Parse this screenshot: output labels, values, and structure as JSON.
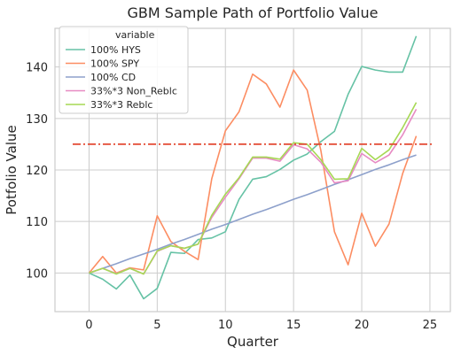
{
  "chart_data": {
    "type": "line",
    "title": "GBM Sample Path of Portfolio Value",
    "xlabel": "Quarter",
    "ylabel": "Potfolio Value",
    "xlim": [
      -2.5,
      26.5
    ],
    "ylim": [
      92.5,
      147.5
    ],
    "xticks": [
      0,
      5,
      10,
      15,
      20,
      25
    ],
    "yticks": [
      100,
      110,
      120,
      130,
      140
    ],
    "grid": true,
    "legend": {
      "title": "variable",
      "position": "top-left"
    },
    "x": [
      0,
      1,
      2,
      3,
      4,
      5,
      6,
      7,
      8,
      9,
      10,
      11,
      12,
      13,
      14,
      15,
      16,
      17,
      18,
      19,
      20,
      21,
      22,
      23,
      24
    ],
    "series": [
      {
        "name": "100% HYS",
        "color": "#66c2a5",
        "values": [
          100,
          98.8,
          96.9,
          99.6,
          95,
          97,
          104,
          103.8,
          106.5,
          106.8,
          108,
          114.3,
          118.2,
          118.7,
          120.1,
          121.9,
          123.1,
          125.5,
          127.5,
          134.7,
          140.1,
          139.4,
          139,
          139,
          146
        ]
      },
      {
        "name": "100% SPY",
        "color": "#fc8d62",
        "values": [
          100,
          103.2,
          100,
          101,
          100.6,
          111.1,
          106.1,
          104.2,
          102.6,
          118.3,
          127.6,
          131.3,
          138.6,
          136.7,
          132.2,
          139.4,
          135.5,
          123.8,
          108,
          101.6,
          111.6,
          105.2,
          109.5,
          119.3,
          126.6
        ]
      },
      {
        "name": "100% CD",
        "color": "#8da0cb",
        "values": [
          100,
          100.9,
          101.8,
          102.8,
          103.7,
          104.6,
          105.6,
          106.5,
          107.5,
          108.5,
          109.4,
          110.4,
          111.4,
          112.3,
          113.3,
          114.3,
          115.2,
          116.2,
          117.2,
          118.1,
          119.1,
          120.1,
          121,
          122,
          122.9
        ]
      },
      {
        "name": "33%*3 Non_Reblc",
        "color": "#e78ac3",
        "values": [
          100,
          100.9,
          99.9,
          100.9,
          99.8,
          104.2,
          105.3,
          104.8,
          105.6,
          110.8,
          114.7,
          118.3,
          122.3,
          122.3,
          121.7,
          124.9,
          124.1,
          121.5,
          117.5,
          117.9,
          123.2,
          121.4,
          122.9,
          126.8,
          131.8
        ]
      },
      {
        "name": "33%*3 Reblc",
        "color": "#a6d854",
        "values": [
          100,
          100.9,
          99.8,
          100.9,
          99.8,
          104.3,
          105.3,
          104.8,
          105.6,
          111.2,
          115.3,
          118.5,
          122.5,
          122.5,
          122.1,
          125.3,
          125,
          122,
          118.2,
          118.3,
          124.2,
          122,
          123.9,
          128.2,
          133.1
        ]
      }
    ],
    "reference_line": {
      "y": 125,
      "x_range": [
        -1.2,
        25.2
      ],
      "color": "#e34a33",
      "style": "dash-dot"
    }
  }
}
